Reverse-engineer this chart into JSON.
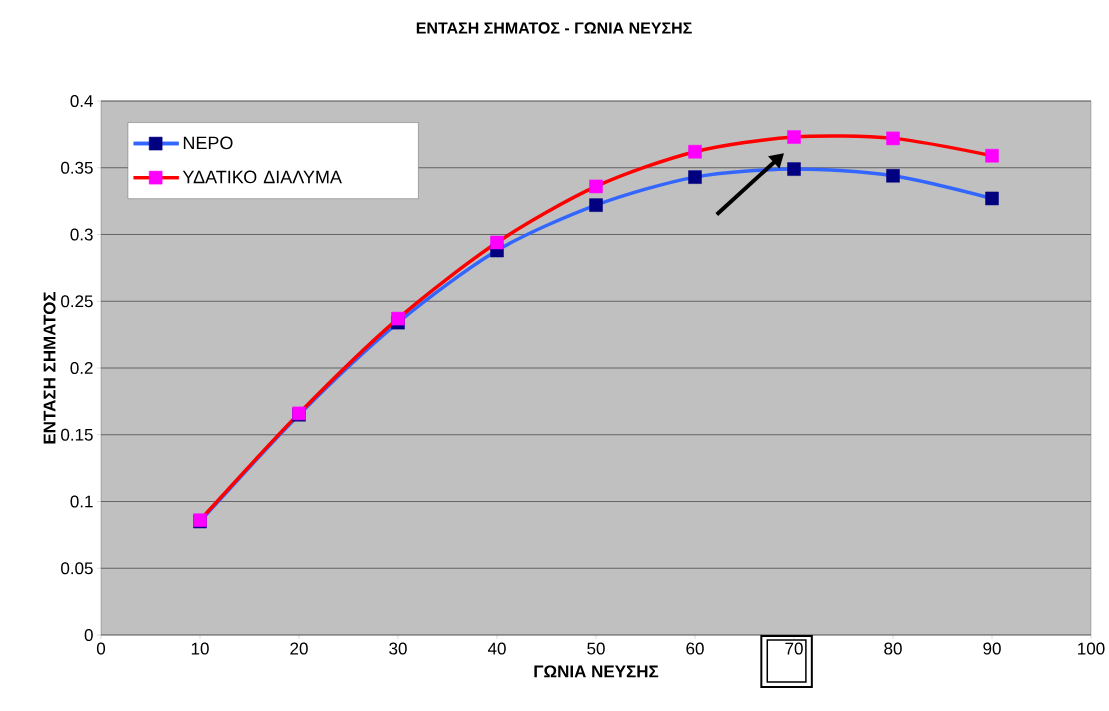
{
  "chart_data": {
    "type": "line",
    "title": "ΕΝΤΑΣΗ ΣΗΜΑΤΟΣ - ΓΩΝΙΑ ΝΕΥΣΗΣ",
    "xlabel": "ΓΩΝΙΑ ΝΕΥΣΗΣ",
    "ylabel": "ΕΝΤΑΣΗ ΣΗΜΑΤΟΣ",
    "x": [
      10,
      20,
      30,
      40,
      50,
      60,
      70,
      80,
      90
    ],
    "series": [
      {
        "name": "ΝΕΡΟ",
        "color": "#3366ff",
        "values": [
          0.085,
          0.165,
          0.234,
          0.288,
          0.322,
          0.343,
          0.349,
          0.344,
          0.327
        ]
      },
      {
        "name": "ΥΔΑΤΙΚΟ ΔΙΑΛΥΜΑ",
        "color": "#ff0000",
        "values": [
          0.086,
          0.166,
          0.237,
          0.294,
          0.336,
          0.362,
          0.373,
          0.372,
          0.359
        ]
      }
    ],
    "xlim": [
      0,
      100
    ],
    "xticks": [
      0,
      10,
      20,
      30,
      40,
      50,
      60,
      70,
      80,
      90,
      100
    ],
    "ylim": [
      0,
      0.4
    ],
    "yticks": [
      0,
      0.05,
      0.1,
      0.15,
      0.2,
      0.25,
      0.3,
      0.35,
      0.4
    ],
    "grid": "y",
    "legend": "top left",
    "marker": "square",
    "line_style": "solid"
  }
}
